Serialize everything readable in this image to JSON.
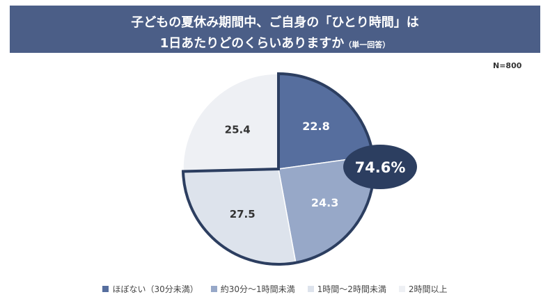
{
  "header": {
    "title_line1": "子どもの夏休み期間中、ご自身の「ひとり時間」は",
    "title_line2": "1日あたりどのくらいありますか",
    "title_note": "（単一回答）"
  },
  "sample": "N=800",
  "chart_data": {
    "type": "pie",
    "title": "子どもの夏休み期間中、ご自身の「ひとり時間」は1日あたりどのくらいありますか（単一回答）",
    "categories": [
      "ほぼない（30分未満）",
      "約30分〜1時間未満",
      "1時間〜2時間未満",
      "2時間以上"
    ],
    "values": [
      22.8,
      24.3,
      27.5,
      25.4
    ],
    "labels": [
      "22.8",
      "24.3",
      "27.5",
      "25.4"
    ],
    "colors": [
      "#566e9e",
      "#97a8c8",
      "#dde3ec",
      "#eef0f4"
    ],
    "highlight": {
      "label": "74.6%",
      "covers": [
        0,
        1,
        2
      ],
      "color": "#2c3e60"
    },
    "legend_position": "bottom"
  }
}
